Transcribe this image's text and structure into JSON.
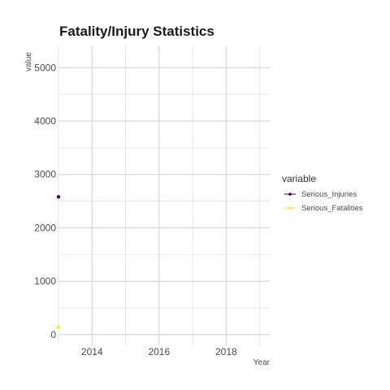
{
  "chart_data": {
    "type": "line",
    "title": "Fatality/Injury Statistics",
    "xlabel": "Year",
    "ylabel": "value",
    "xlim": [
      2013,
      2019.3
    ],
    "ylim": [
      -200,
      5400
    ],
    "x_ticks": [
      2014,
      2016,
      2018
    ],
    "y_ticks": [
      0,
      1000,
      2000,
      3000,
      4000,
      5000
    ],
    "legend_title": "variable",
    "legend_position": "right",
    "series": [
      {
        "name": "Serious_Injuries",
        "color": "#440154",
        "points": [
          {
            "x": 2013,
            "y": 2580
          }
        ]
      },
      {
        "name": "Serious_Fatalities",
        "color": "#FDE725",
        "points": [
          {
            "x": 2013,
            "y": 140
          }
        ]
      }
    ]
  }
}
